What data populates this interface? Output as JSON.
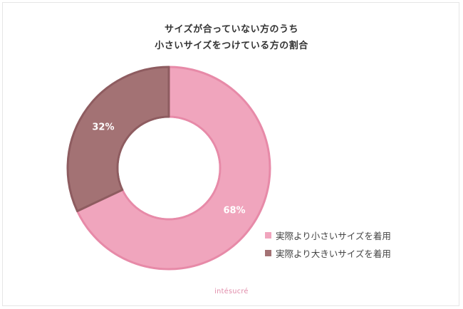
{
  "chart_data": {
    "type": "pie",
    "title_lines": [
      "サイズが合っていない方のうち",
      "小さいサイズをつけている方の割合"
    ],
    "categories": [
      "実際より小さいサイズを着用",
      "実際より大きいサイズを着用"
    ],
    "values": [
      68,
      32
    ],
    "value_labels": [
      "68%",
      "32%"
    ],
    "colors": [
      "#f0a5bd",
      "#a37274"
    ],
    "stroke_colors": [
      "#e78aa8",
      "#8e5c60"
    ],
    "donut": true,
    "legend_position": "bottom-right"
  },
  "brand": "intésucré"
}
